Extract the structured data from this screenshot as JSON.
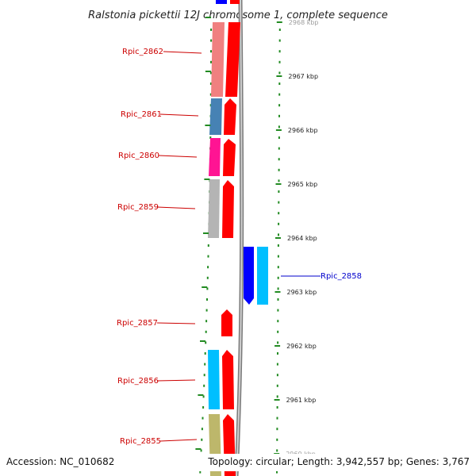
{
  "title": "Ralstonia pickettii 12J chromosome 1, complete sequence",
  "accession": "Accession: NC_010682",
  "topology": "Topology: circular; Length: 3,942,557 bp; Genes: 3,767",
  "scale_labels": [
    "2968 kbp",
    "2967 kbp",
    "2966 kbp",
    "2965 kbp",
    "2964 kbp",
    "2963 kbp",
    "2962 kbp",
    "2961 kbp",
    "2960 kbp"
  ],
  "genes": [
    {
      "name": "Rpic_2862",
      "strand": "minus",
      "color": "#f08080"
    },
    {
      "name": "Rpic_2861",
      "strand": "minus",
      "color": "#4682b4"
    },
    {
      "name": "Rpic_2860",
      "strand": "minus",
      "color": "#ff1493"
    },
    {
      "name": "Rpic_2859",
      "strand": "minus",
      "color": "#b0b0b0"
    },
    {
      "name": "Rpic_2858",
      "strand": "plus",
      "color": "#00bfff"
    },
    {
      "name": "Rpic_2857",
      "strand": "minus",
      "color": "#ff0000"
    },
    {
      "name": "Rpic_2856",
      "strand": "minus",
      "color": "#00bfff"
    },
    {
      "name": "Rpic_2855",
      "strand": "minus",
      "color": "#bdb76b"
    }
  ],
  "colors": {
    "minus_label": "#cc0000",
    "plus_label": "#0000cc",
    "cds": "#ff0000",
    "cds_plus": "#0000ff",
    "backbone": "#999999",
    "scale_ticks": "#228b22"
  }
}
